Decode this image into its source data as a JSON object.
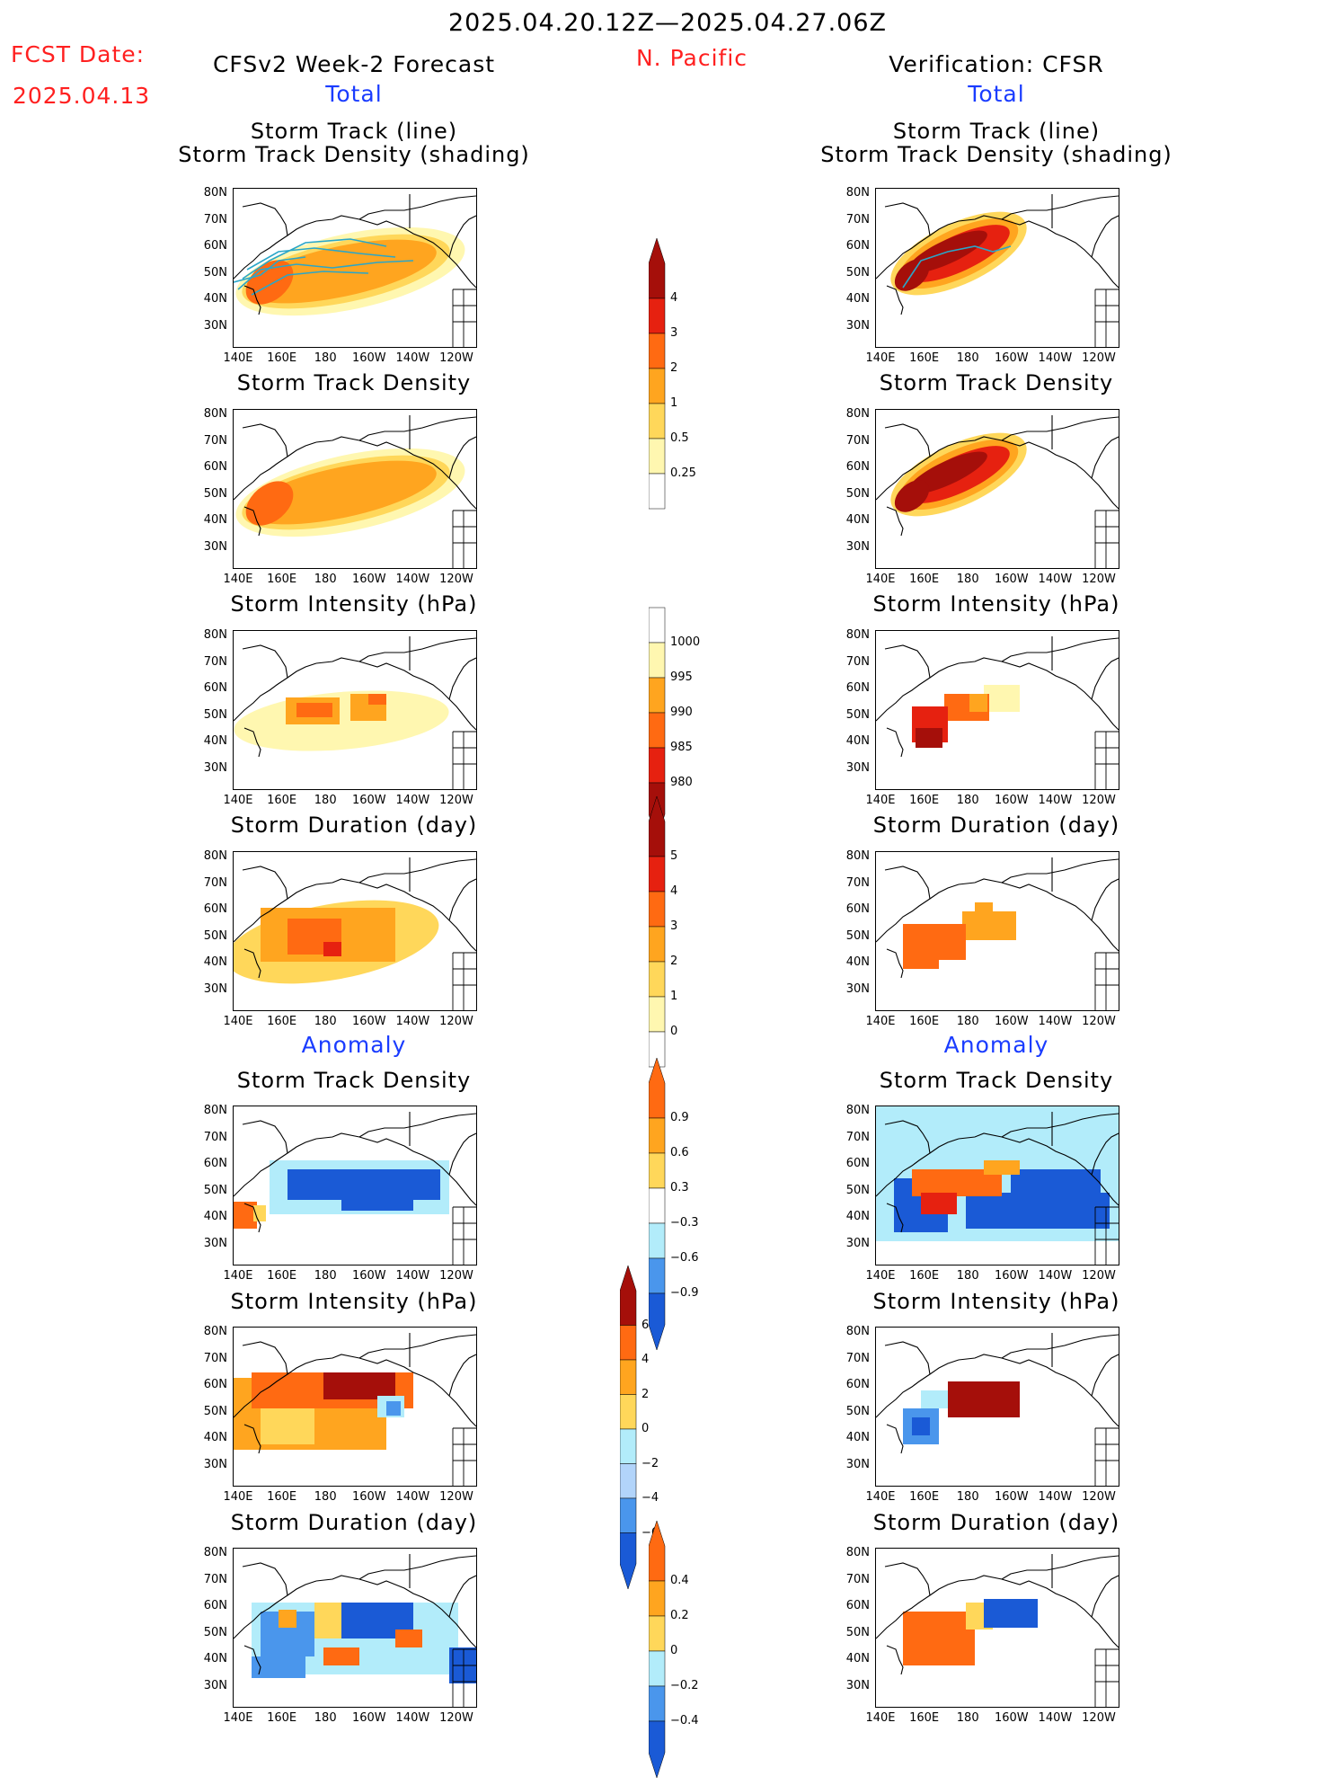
{
  "header": {
    "date_range": "2025.04.20.12Z—2025.04.27.06Z",
    "region": "N. Pacific",
    "fcst_label": "FCST Date:",
    "fcst_date": "2025.04.13",
    "left_title": "CFSv2 Week-2 Forecast",
    "right_title": "Verification: CFSR",
    "total_label": "Total",
    "anomaly_label": "Anomaly"
  },
  "panel_titles": {
    "track_line": "Storm Track (line)",
    "track_shading": "Storm Track Density (shading)",
    "track_density": "Storm Track Density",
    "intensity": "Storm Intensity (hPa)",
    "duration": "Storm Duration (day)"
  },
  "axes": {
    "lat_ticks": [
      "80N",
      "70N",
      "60N",
      "50N",
      "40N",
      "30N"
    ],
    "lon_ticks": [
      "140E",
      "160E",
      "180",
      "160W",
      "140W",
      "120W"
    ]
  },
  "colorbars": {
    "density_total": [
      "4",
      "3",
      "2",
      "1",
      "0.5",
      "0.25"
    ],
    "intensity_total": [
      "1000",
      "995",
      "990",
      "985",
      "980"
    ],
    "duration_total": [
      "5",
      "4",
      "3",
      "2",
      "1",
      "0"
    ],
    "density_anom": [
      "0.9",
      "0.6",
      "0.3",
      "−0.3",
      "−0.6",
      "−0.9"
    ],
    "intensity_anom": [
      "6",
      "4",
      "2",
      "0",
      "−2",
      "−4",
      "−6"
    ],
    "duration_anom": [
      "0.4",
      "0.2",
      "0",
      "−0.2",
      "−0.4"
    ]
  },
  "colors": {
    "title_red": "#ff2020",
    "label_blue": "#1a3cff",
    "track_line": "#2aa6c8",
    "pale_yellow": "#fff7b0",
    "yellow": "#ffd75a",
    "orange": "#ffa51f",
    "orange_red": "#ff6a12",
    "red": "#e62110",
    "dark_red": "#a50f0a",
    "light_blue": "#b2ecfa",
    "mid_blue": "#4a96ec",
    "blue": "#1a5ad6"
  }
}
